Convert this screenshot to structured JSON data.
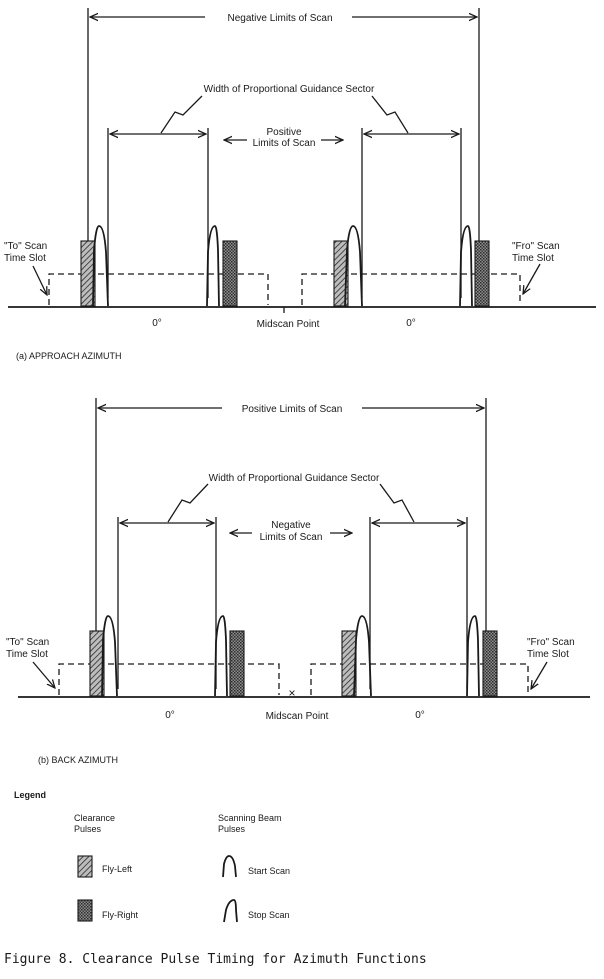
{
  "panel_a": {
    "title": "(a)  APPROACH AZIMUTH",
    "outer_limits_label": "Negative Limits of Scan",
    "sector_label": "Width of Proportional Guidance Sector",
    "inner_limits_label_line1": "Positive",
    "inner_limits_label_line2": "Limits of Scan",
    "to_slot_line1": "\"To\" Scan",
    "to_slot_line2": "Time Slot",
    "fro_slot_line1": "\"Fro\" Scan",
    "fro_slot_line2": "Time Slot",
    "zero_left": "0°",
    "zero_right": "0°",
    "midscan": "Midscan Point"
  },
  "panel_b": {
    "title": "(b)  BACK AZIMUTH",
    "outer_limits_label": "Positive Limits of Scan",
    "sector_label": "Width of Proportional Guidance Sector",
    "inner_limits_label_line1": "Negative",
    "inner_limits_label_line2": "Limits of Scan",
    "to_slot_line1": "\"To\" Scan",
    "to_slot_line2": "Time Slot",
    "fro_slot_line1": "\"Fro\" Scan",
    "fro_slot_line2": "Time Slot",
    "zero_left": "0°",
    "zero_right": "0°",
    "midscan": "Midscan Point"
  },
  "legend": {
    "title": "Legend",
    "clearance_header_line1": "Clearance",
    "clearance_header_line2": "Pulses",
    "scanning_header_line1": "Scanning Beam",
    "scanning_header_line2": "Pulses",
    "fly_left": "Fly-Left",
    "fly_right": "Fly-Right",
    "start_scan": "Start Scan",
    "stop_scan": "Stop Scan"
  },
  "caption": "Figure 8.  Clearance Pulse Timing for Azimuth Functions"
}
